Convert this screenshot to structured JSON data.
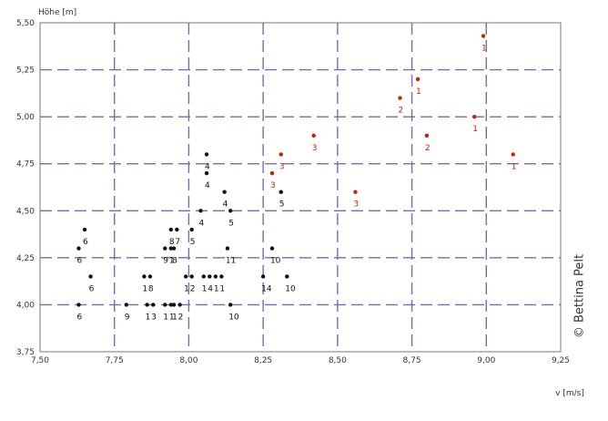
{
  "chart_data": {
    "type": "scatter",
    "ylabel": "Höhe [m]",
    "xlabel": "v [m/s]",
    "xlim": [
      7.5,
      9.25
    ],
    "ylim": [
      3.75,
      5.5
    ],
    "x_ticks": [
      "7,50",
      "7,75",
      "8,00",
      "8,25",
      "8,50",
      "8,75",
      "9,00",
      "9,25"
    ],
    "y_ticks": [
      "3,75",
      "4,00",
      "4,25",
      "4,50",
      "4,75",
      "5,00",
      "5,25",
      "5,50"
    ],
    "grid": true,
    "colors": {
      "black_points": "#111111",
      "red_points": "#cc2200",
      "grid": "#7a6ab0",
      "frame": "#777777"
    },
    "series": [
      {
        "color": "black",
        "points": [
          {
            "x": 7.65,
            "y": 4.4,
            "label": "6"
          },
          {
            "x": 7.63,
            "y": 4.3,
            "label": "6"
          },
          {
            "x": 7.67,
            "y": 4.15,
            "label": "6"
          },
          {
            "x": 7.63,
            "y": 4.0,
            "label": "6"
          },
          {
            "x": 7.79,
            "y": 4.0,
            "label": "9"
          },
          {
            "x": 7.85,
            "y": 4.15,
            "label": "1"
          },
          {
            "x": 7.87,
            "y": 4.15,
            "label": "8"
          },
          {
            "x": 7.86,
            "y": 4.0,
            "label": "1"
          },
          {
            "x": 7.88,
            "y": 4.0,
            "label": "3"
          },
          {
            "x": 7.92,
            "y": 4.0,
            "label": "1"
          },
          {
            "x": 7.94,
            "y": 4.0,
            "label": "1"
          },
          {
            "x": 7.95,
            "y": 4.0,
            "label": "1"
          },
          {
            "x": 7.97,
            "y": 4.0,
            "label": "2"
          },
          {
            "x": 7.92,
            "y": 4.3,
            "label": "9"
          },
          {
            "x": 7.94,
            "y": 4.3,
            "label": "1"
          },
          {
            "x": 7.95,
            "y": 4.3,
            "label": "8"
          },
          {
            "x": 7.94,
            "y": 4.4,
            "label": "8"
          },
          {
            "x": 7.96,
            "y": 4.4,
            "label": "7"
          },
          {
            "x": 8.01,
            "y": 4.4,
            "label": "5"
          },
          {
            "x": 7.99,
            "y": 4.15,
            "label": "1"
          },
          {
            "x": 8.01,
            "y": 4.15,
            "label": "2"
          },
          {
            "x": 8.05,
            "y": 4.15,
            "label": "1"
          },
          {
            "x": 8.07,
            "y": 4.15,
            "label": "4"
          },
          {
            "x": 8.09,
            "y": 4.15,
            "label": "1"
          },
          {
            "x": 8.11,
            "y": 4.15,
            "label": "1"
          },
          {
            "x": 8.06,
            "y": 4.8,
            "label": "4"
          },
          {
            "x": 8.06,
            "y": 4.7,
            "label": "4"
          },
          {
            "x": 8.12,
            "y": 4.6,
            "label": "4"
          },
          {
            "x": 8.04,
            "y": 4.5,
            "label": "4"
          },
          {
            "x": 8.14,
            "y": 4.5,
            "label": "5"
          },
          {
            "x": 8.13,
            "y": 4.3,
            "label": "11"
          },
          {
            "x": 8.14,
            "y": 4.0,
            "label": "10"
          },
          {
            "x": 8.25,
            "y": 4.15,
            "label": "14"
          },
          {
            "x": 8.28,
            "y": 4.3,
            "label": "10"
          },
          {
            "x": 8.31,
            "y": 4.6,
            "label": "5"
          },
          {
            "x": 8.33,
            "y": 4.15,
            "label": "10"
          }
        ]
      },
      {
        "color": "red",
        "points": [
          {
            "x": 8.28,
            "y": 4.7,
            "label": "3"
          },
          {
            "x": 8.31,
            "y": 4.8,
            "label": "3"
          },
          {
            "x": 8.42,
            "y": 4.9,
            "label": "3"
          },
          {
            "x": 8.56,
            "y": 4.6,
            "label": "3"
          },
          {
            "x": 8.71,
            "y": 5.1,
            "label": "2"
          },
          {
            "x": 8.77,
            "y": 5.2,
            "label": "1"
          },
          {
            "x": 8.8,
            "y": 4.9,
            "label": "2"
          },
          {
            "x": 8.96,
            "y": 5.0,
            "label": "1"
          },
          {
            "x": 8.99,
            "y": 5.43,
            "label": "1"
          },
          {
            "x": 9.09,
            "y": 4.8,
            "label": "1"
          }
        ]
      }
    ]
  },
  "credit": "© Bettina Pelt"
}
